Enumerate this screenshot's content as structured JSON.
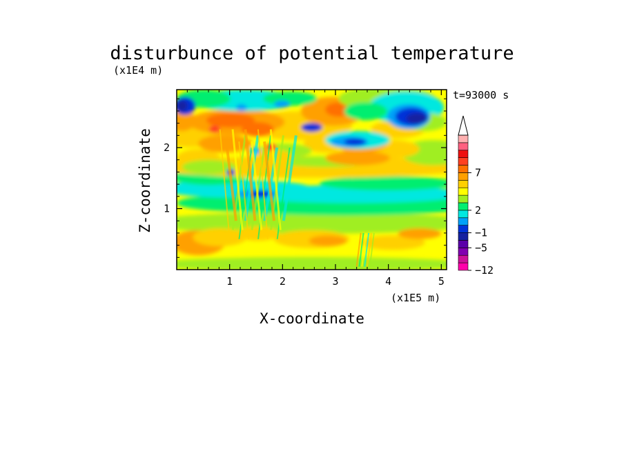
{
  "chart_data": {
    "type": "heatmap",
    "title": "disturbunce of potential temperature",
    "xlabel": "X-coordinate",
    "ylabel": "Z-coordinate",
    "x_scale_label": "(x1E5 m)",
    "y_scale_label": "(x1E4 m)",
    "time_label": "t=93000 s",
    "xlim": [
      0,
      5.1
    ],
    "ylim": [
      0,
      2.95
    ],
    "x_ticks": [
      "1",
      "2",
      "3",
      "4",
      "5"
    ],
    "y_ticks": [
      "1",
      "2"
    ],
    "grid": false,
    "legend": "right colorbar, triangle at top",
    "colorbar": {
      "levels": [
        -12,
        -10,
        -8,
        -6,
        -5,
        -4,
        -3,
        -2,
        -1,
        0,
        1,
        2,
        3,
        4,
        5,
        6,
        7,
        8,
        9,
        10
      ],
      "tick_labels": [
        "7",
        "2",
        "−1",
        "−5",
        "−12"
      ],
      "colors": [
        "#ff00aa",
        "#cc1199",
        "#8000b0",
        "#5a00a8",
        "#1522a0",
        "#0033d8",
        "#00a0f8",
        "#00e8e0",
        "#00ee70",
        "#a0ee20",
        "#ffff00",
        "#ffd000",
        "#ffa000",
        "#ff7000",
        "#ff4020",
        "#ee1010",
        "#ff6080",
        "#ffb0b0"
      ]
    },
    "features": [
      {
        "x": 4.4,
        "z": 2.6,
        "value": -6,
        "label": "cold core upper right"
      },
      {
        "x": 0.1,
        "z": 2.65,
        "value": -5,
        "label": "cold upper left"
      },
      {
        "x": 3.2,
        "z": 2.05,
        "value": -5,
        "label": "cold band upper middle"
      },
      {
        "x": 1.5,
        "z": 1.25,
        "value": -5,
        "label": "cold patch mid-level"
      },
      {
        "x": 2.9,
        "z": 1.25,
        "value": -1,
        "label": "cool layer z~1.2"
      },
      {
        "x": 1.1,
        "z": 2.45,
        "value": 5,
        "label": "warm upper-left"
      },
      {
        "x": 3.1,
        "z": 2.6,
        "value": 5,
        "label": "warm upper-middle"
      },
      {
        "x": 0.3,
        "z": 0.5,
        "value": 3,
        "label": "warm lower-left"
      },
      {
        "x": 3.0,
        "z": 0.55,
        "value": 3,
        "label": "warm lower-middle"
      },
      {
        "x": 2.5,
        "z": 0.15,
        "value": 1,
        "label": "surface layer"
      }
    ]
  }
}
